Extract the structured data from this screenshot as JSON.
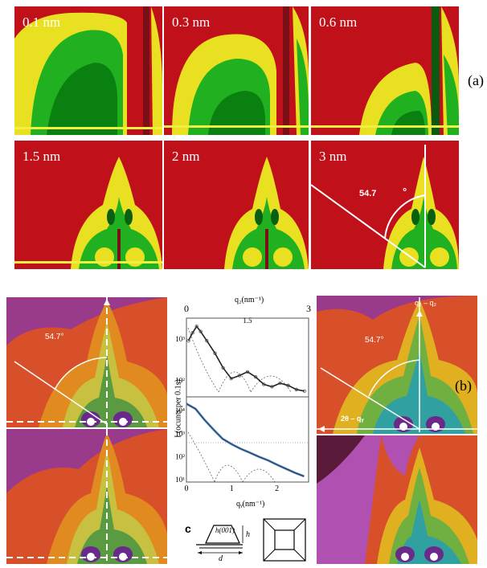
{
  "figure_a": {
    "tag": "(a)",
    "panels": [
      {
        "label": "0.1 nm"
      },
      {
        "label": "0.3 nm"
      },
      {
        "label": "0.6 nm"
      },
      {
        "label": "1.5 nm"
      },
      {
        "label": "2 nm"
      },
      {
        "label": "3 nm",
        "angle_label": "54.7",
        "degree_symbol": "°"
      }
    ]
  },
  "figure_b": {
    "tag": "(b)",
    "left_top_angle": "54.7°",
    "right_top_angle": "54.7°",
    "right_top_vertical": "q₂ – q₂",
    "right_top_horizontal": "2θ – qᵧ",
    "c_label": "c",
    "schematic_h001": "h(001)",
    "schematic_h": "h",
    "schematic_d": "d"
  },
  "chart_data": {
    "type": "line",
    "top_x_label": "q₂(nm⁻¹)",
    "top_x_ticks": [
      "0",
      "1.5",
      "3"
    ],
    "bottom_x_label": "qᵧ(nm⁻¹)",
    "bottom_x_ticks": [
      "0",
      "1",
      "2"
    ],
    "y_label": "I (ocunts per 0.1s)",
    "top_y_ticks": [
      "10³",
      "10²"
    ],
    "bottom_y_ticks": [
      "10⁴",
      "10³",
      "10²",
      "10¹"
    ],
    "top_series": {
      "x": [
        0.05,
        0.15,
        0.25,
        0.35,
        0.5,
        0.7,
        0.9,
        1.1,
        1.3,
        1.5,
        1.7,
        1.9,
        2.1,
        2.3,
        2.5,
        2.7,
        2.9
      ],
      "y": [
        900,
        1400,
        2000,
        1500,
        900,
        450,
        200,
        110,
        130,
        160,
        120,
        80,
        70,
        85,
        75,
        60,
        55
      ]
    },
    "bottom_series": {
      "x": [
        0.0,
        0.2,
        0.4,
        0.6,
        0.8,
        1.0,
        1.2,
        1.4,
        1.6,
        1.8,
        2.0,
        2.2,
        2.4,
        2.6
      ],
      "y": [
        20000,
        12000,
        4000,
        1500,
        600,
        350,
        220,
        150,
        100,
        70,
        45,
        30,
        20,
        14
      ]
    }
  }
}
